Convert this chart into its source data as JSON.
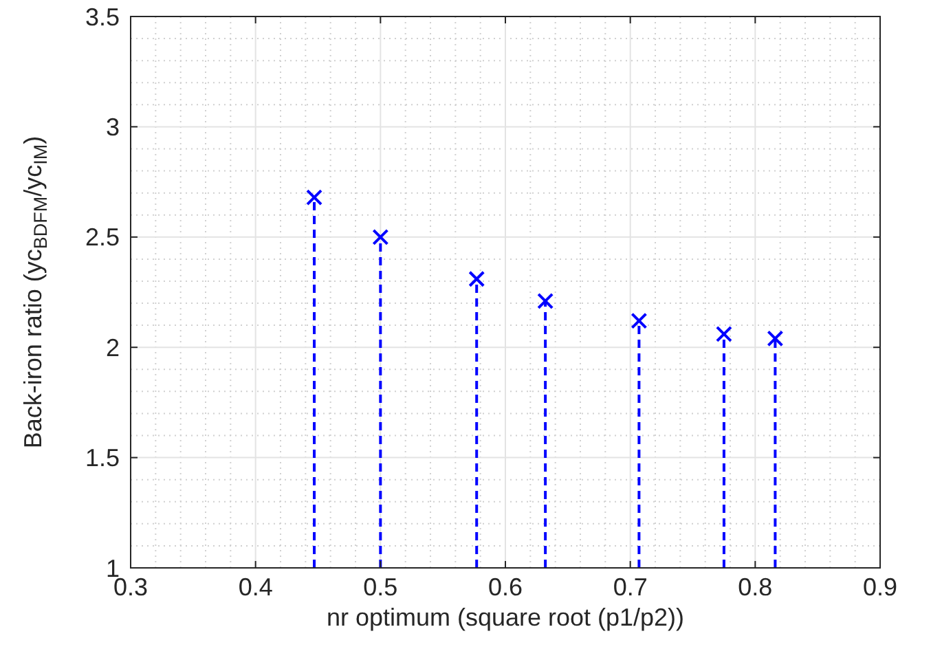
{
  "chart_data": {
    "type": "lollipop",
    "xlabel": "nr optimum (square root (p1/p2))",
    "ylabel": "Back-iron ratio (yc$_{BDFM}$/yc$_{IM}$)",
    "x": [
      0.447,
      0.5,
      0.577,
      0.632,
      0.707,
      0.775,
      0.816
    ],
    "values": [
      2.68,
      2.5,
      2.31,
      2.21,
      2.12,
      2.06,
      2.04
    ],
    "color": "#0000ff",
    "marker": "cross",
    "line_style": "dashed",
    "xlim": [
      0.3,
      0.9
    ],
    "xticks": [
      0.3,
      0.4,
      0.5,
      0.6,
      0.7,
      0.8,
      0.9
    ],
    "ylim": [
      1,
      3.5
    ],
    "yticks": [
      1,
      1.5,
      2,
      2.5,
      3,
      3.5
    ],
    "grid": true
  }
}
